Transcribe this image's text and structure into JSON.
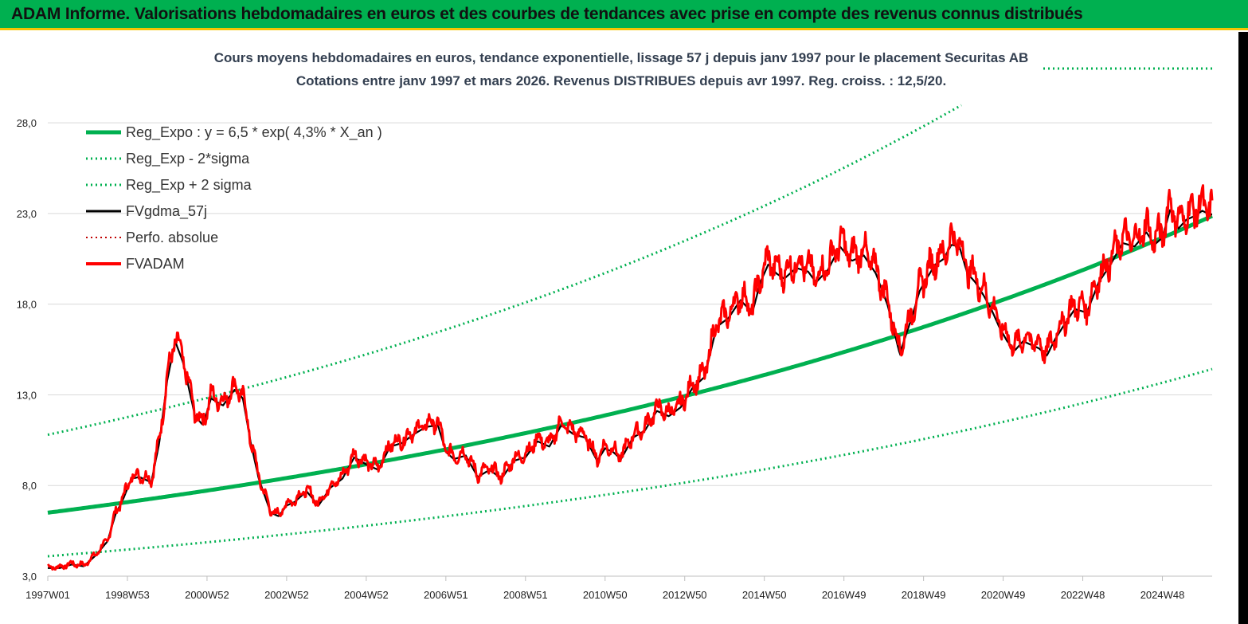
{
  "header": {
    "title": "ADAM Informe. Valorisations hebdomadaires en euros et des courbes de tendances avec prise en compte des revenus connus distribués"
  },
  "colors": {
    "header_bg": "#00b050",
    "header_border": "#f5c400",
    "reg_expo": "#00b050",
    "fvadam": "#ff0000",
    "fvgdma": "#000000",
    "perfo": "#c00000"
  },
  "chart_data": {
    "type": "line",
    "title": "Cours moyens hebdomadaires en euros, tendance exponentielle, lissage 57 j depuis janv 1997 pour le placement Securitas AB",
    "subtitle": "Cotations entre janv 1997 et mars 2026. Revenus DISTRIBUES depuis avr 1997. Reg. croiss. : 12,5/20.",
    "xlabel": "",
    "ylabel": "",
    "ylim": [
      3,
      29.5
    ],
    "xlim": [
      1997.0,
      2026.25
    ],
    "grid": true,
    "legend_position": "top-left",
    "y_ticks": [
      "3,0",
      "8,0",
      "13,0",
      "18,0",
      "23,0",
      "28,0"
    ],
    "y_tick_values": [
      3,
      8,
      13,
      18,
      23,
      28
    ],
    "x_ticks": [
      "1997W01",
      "1998W53",
      "2000W52",
      "2002W52",
      "2004W52",
      "2006W51",
      "2008W51",
      "2010W50",
      "2012W50",
      "2014W50",
      "2016W49",
      "2018W49",
      "2020W49",
      "2022W48",
      "2024W48"
    ],
    "x_tick_values": [
      1997.0,
      1999.0,
      2001.0,
      2003.0,
      2005.0,
      2007.0,
      2009.0,
      2011.0,
      2013.0,
      2015.0,
      2017.0,
      2019.0,
      2021.0,
      2023.0,
      2025.0
    ],
    "series": [
      {
        "name": "Reg_Expo : y = 6,5 * exp( 4,3% *  X_an )",
        "kind": "reg",
        "style": "solid-thick",
        "color": "#00b050",
        "amp": 6.5,
        "rate": 0.043
      },
      {
        "name": "Reg_Exp - 2*sigma",
        "kind": "reg",
        "style": "dotted",
        "color": "#00b050",
        "amp": 4.1,
        "rate": 0.043
      },
      {
        "name": "Reg_Exp + 2 sigma",
        "kind": "reg",
        "style": "dotted",
        "color": "#00b050",
        "amp": 10.8,
        "rate": 0.043
      },
      {
        "name": "FVgdma_57j",
        "kind": "smooth",
        "style": "solid",
        "color": "#000000"
      },
      {
        "name": "Perfo. absolue",
        "kind": "legend-only",
        "style": "dotted",
        "color": "#c00000"
      },
      {
        "name": "FVADAM",
        "kind": "price",
        "style": "solid-thick",
        "color": "#ff0000",
        "x": [
          1997.0,
          1997.3,
          1997.6,
          1997.9,
          1998.2,
          1998.5,
          1998.7,
          1998.9,
          1999.1,
          1999.3,
          1999.6,
          1999.8,
          2000.0,
          2000.2,
          2000.4,
          2000.7,
          2000.9,
          2001.1,
          2001.4,
          2001.7,
          2001.9,
          2002.1,
          2002.3,
          2002.6,
          2002.8,
          2003.0,
          2003.2,
          2003.5,
          2003.8,
          2004.1,
          2004.4,
          2004.7,
          2005.0,
          2005.3,
          2005.6,
          2005.9,
          2006.2,
          2006.5,
          2006.8,
          2007.0,
          2007.2,
          2007.5,
          2007.8,
          2008.1,
          2008.4,
          2008.7,
          2009.0,
          2009.3,
          2009.6,
          2009.9,
          2010.2,
          2010.5,
          2010.8,
          2011.0,
          2011.2,
          2011.4,
          2011.7,
          2012.0,
          2012.3,
          2012.6,
          2012.9,
          2013.2,
          2013.5,
          2013.8,
          2014.1,
          2014.4,
          2014.7,
          2014.9,
          2015.1,
          2015.3,
          2015.5,
          2015.8,
          2016.1,
          2016.3,
          2016.6,
          2016.9,
          2017.2,
          2017.5,
          2017.8,
          2018.1,
          2018.4,
          2018.7,
          2018.9,
          2019.1,
          2019.3,
          2019.5,
          2019.7,
          2019.9,
          2020.1,
          2020.3,
          2020.5,
          2020.7,
          2020.9,
          2021.1,
          2021.3,
          2021.5,
          2021.7,
          2021.9,
          2022.1,
          2022.3,
          2022.5,
          2022.8,
          2023.1,
          2023.4,
          2023.7,
          2024.0,
          2024.3,
          2024.6,
          2024.8,
          2025.0,
          2025.2,
          2025.4,
          2025.6,
          2025.8,
          2026.0,
          2026.2
        ],
        "values": [
          3.5,
          3.5,
          3.7,
          3.6,
          4.2,
          5.0,
          6.5,
          7.4,
          8.5,
          8.6,
          8.3,
          10.5,
          14.0,
          16.2,
          15.0,
          12.0,
          11.5,
          13.0,
          12.6,
          13.5,
          13.0,
          10.5,
          8.5,
          6.6,
          6.4,
          7.0,
          7.2,
          7.8,
          7.0,
          8.0,
          8.5,
          9.7,
          9.3,
          9.0,
          10.3,
          10.5,
          11.0,
          11.4,
          11.5,
          10.0,
          9.6,
          9.8,
          8.6,
          9.0,
          8.5,
          9.5,
          9.7,
          10.6,
          10.3,
          11.5,
          11.0,
          10.8,
          9.5,
          10.2,
          10.0,
          9.6,
          10.8,
          11.2,
          12.3,
          12.0,
          12.5,
          13.6,
          14.2,
          17.0,
          17.5,
          18.5,
          17.8,
          19.5,
          20.5,
          20.0,
          19.7,
          20.3,
          20.1,
          19.5,
          20.2,
          21.5,
          20.7,
          21.0,
          20.0,
          18.2,
          15.5,
          17.5,
          19.0,
          19.8,
          20.5,
          20.8,
          21.6,
          21.5,
          20.0,
          19.5,
          18.8,
          18.0,
          17.0,
          16.2,
          15.7,
          16.2,
          16.0,
          15.8,
          15.4,
          16.3,
          17.0,
          18.0,
          17.8,
          19.5,
          20.5,
          21.7,
          21.5,
          22.3,
          21.6,
          22.0,
          23.6,
          22.5,
          23.0,
          23.2,
          23.5,
          23.3
        ]
      }
    ]
  }
}
